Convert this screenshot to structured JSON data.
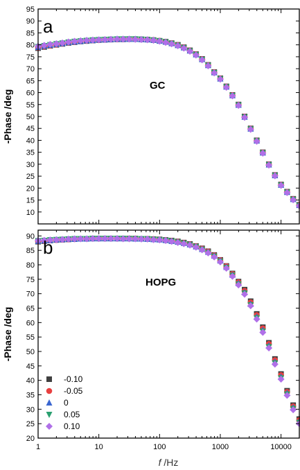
{
  "chart_data": [
    {
      "type": "scatter",
      "panel_label": "a",
      "annotation": "GC",
      "ylabel": "-Phase /deg",
      "xscale": "log",
      "xlim": [
        1,
        20000
      ],
      "ylim": [
        5,
        95
      ],
      "yticks": [
        10,
        15,
        20,
        25,
        30,
        35,
        40,
        45,
        50,
        55,
        60,
        65,
        70,
        75,
        80,
        85,
        90,
        95
      ],
      "xticks": [
        1,
        10,
        100,
        1000,
        10000
      ],
      "x": [
        1,
        1.26,
        1.58,
        2,
        2.51,
        3.16,
        3.98,
        5.01,
        6.31,
        7.94,
        10,
        12.6,
        15.8,
        20,
        25.1,
        31.6,
        39.8,
        50.1,
        63.1,
        79.4,
        100,
        126,
        158,
        200,
        251,
        316,
        398,
        501,
        631,
        794,
        1000,
        1259,
        1585,
        1995,
        2512,
        3162,
        3981,
        5012,
        6310,
        7943,
        10000,
        12589,
        15849,
        19953
      ],
      "series": [
        {
          "name": "-0.10",
          "color": "#404040",
          "marker": "square",
          "values": [
            78.6,
            79.1,
            79.6,
            80.0,
            80.4,
            80.8,
            81.1,
            81.4,
            81.6,
            81.8,
            82.0,
            82.1,
            82.2,
            82.3,
            82.3,
            82.4,
            82.4,
            82.3,
            82.2,
            82.0,
            81.7,
            81.3,
            80.7,
            80.0,
            79.0,
            77.7,
            76.1,
            74.1,
            71.6,
            68.6,
            66.0,
            62.6,
            59.0,
            55.0,
            50.0,
            45.0,
            40.0,
            35.0,
            30.0,
            25.5,
            21.5,
            18.5,
            15.5,
            13.0
          ]
        },
        {
          "name": "-0.05",
          "color": "#e84040",
          "marker": "circle",
          "values": [
            78.8,
            79.3,
            79.7,
            80.1,
            80.5,
            80.9,
            81.2,
            81.5,
            81.7,
            81.9,
            82.0,
            82.2,
            82.3,
            82.3,
            82.4,
            82.4,
            82.4,
            82.3,
            82.2,
            82.0,
            81.7,
            81.2,
            80.6,
            79.9,
            78.9,
            77.6,
            76.0,
            74.0,
            71.5,
            68.5,
            65.9,
            62.5,
            58.9,
            54.9,
            49.9,
            44.9,
            39.9,
            34.9,
            29.9,
            25.4,
            21.4,
            18.4,
            15.4,
            12.9
          ]
        },
        {
          "name": "0",
          "color": "#3a66d0",
          "marker": "triangle-up",
          "values": [
            79.0,
            79.5,
            79.9,
            80.3,
            80.6,
            81.0,
            81.3,
            81.5,
            81.8,
            81.9,
            82.1,
            82.2,
            82.3,
            82.4,
            82.4,
            82.4,
            82.4,
            82.3,
            82.2,
            82.0,
            81.6,
            81.2,
            80.6,
            79.8,
            78.8,
            77.5,
            75.9,
            73.9,
            71.4,
            68.4,
            65.8,
            62.4,
            58.8,
            54.8,
            49.8,
            44.8,
            39.8,
            34.8,
            29.8,
            25.3,
            21.3,
            18.3,
            15.3,
            12.8
          ]
        },
        {
          "name": "0.05",
          "color": "#2aa070",
          "marker": "triangle-down",
          "values": [
            79.2,
            79.6,
            80.0,
            80.4,
            80.7,
            81.1,
            81.4,
            81.6,
            81.8,
            82.0,
            82.1,
            82.2,
            82.3,
            82.4,
            82.4,
            82.4,
            82.4,
            82.3,
            82.1,
            81.9,
            81.6,
            81.1,
            80.5,
            79.7,
            78.7,
            77.4,
            75.8,
            73.8,
            71.3,
            68.3,
            65.7,
            62.3,
            58.7,
            54.7,
            49.7,
            44.7,
            39.7,
            34.7,
            29.7,
            25.2,
            21.2,
            18.2,
            15.2,
            12.7
          ]
        },
        {
          "name": "0.10",
          "color": "#b070e8",
          "marker": "diamond",
          "values": [
            79.4,
            79.8,
            80.2,
            80.5,
            80.8,
            81.2,
            81.5,
            81.7,
            81.9,
            82.0,
            82.1,
            82.2,
            82.3,
            82.4,
            82.4,
            82.4,
            82.3,
            82.2,
            82.1,
            81.9,
            81.5,
            81.0,
            80.4,
            79.6,
            78.6,
            77.3,
            75.7,
            73.7,
            71.2,
            68.2,
            65.6,
            62.2,
            58.6,
            54.6,
            49.6,
            44.6,
            39.6,
            34.6,
            29.6,
            25.1,
            21.1,
            18.1,
            15.1,
            12.6
          ]
        }
      ]
    },
    {
      "type": "scatter",
      "panel_label": "b",
      "annotation": "HOPG",
      "ylabel": "-Phase /deg",
      "xlabel_italic": "f",
      "xlabel": " /Hz",
      "xscale": "log",
      "xlim": [
        1,
        20000
      ],
      "ylim": [
        20,
        92
      ],
      "yticks": [
        20,
        25,
        30,
        35,
        40,
        45,
        50,
        55,
        60,
        65,
        70,
        75,
        80,
        85,
        90
      ],
      "xticks": [
        1,
        10,
        100,
        1000,
        10000
      ],
      "xtick_labels": [
        "1",
        "10",
        "100",
        "1000",
        "10000"
      ],
      "legend": "bottom-left",
      "x": [
        1,
        1.26,
        1.58,
        2,
        2.51,
        3.16,
        3.98,
        5.01,
        6.31,
        7.94,
        10,
        12.6,
        15.8,
        20,
        25.1,
        31.6,
        39.8,
        50.1,
        63.1,
        79.4,
        100,
        126,
        158,
        200,
        251,
        316,
        398,
        501,
        631,
        794,
        1000,
        1259,
        1585,
        1995,
        2512,
        3162,
        3981,
        5012,
        6310,
        7943,
        10000,
        12589,
        15849,
        19953
      ],
      "series": [
        {
          "name": "-0.10",
          "color": "#404040",
          "marker": "square",
          "values": [
            88.0,
            88.2,
            88.4,
            88.6,
            88.7,
            88.8,
            88.9,
            89.0,
            89.0,
            89.1,
            89.1,
            89.1,
            89.1,
            89.1,
            89.1,
            89.1,
            89.1,
            89.0,
            89.0,
            88.9,
            88.8,
            88.6,
            88.4,
            88.1,
            87.7,
            87.2,
            86.5,
            85.7,
            84.7,
            83.4,
            81.7,
            79.6,
            77.0,
            74.2,
            71.4,
            67.4,
            63.0,
            58.4,
            53.0,
            47.4,
            42.2,
            36.4,
            31.4,
            26.6
          ]
        },
        {
          "name": "-0.05",
          "color": "#e84040",
          "marker": "circle",
          "values": [
            88.1,
            88.3,
            88.5,
            88.6,
            88.7,
            88.8,
            88.9,
            89.0,
            89.0,
            89.1,
            89.1,
            89.1,
            89.1,
            89.1,
            89.1,
            89.1,
            89.1,
            89.0,
            89.0,
            88.9,
            88.7,
            88.5,
            88.3,
            88.0,
            87.6,
            87.1,
            86.4,
            85.6,
            84.6,
            83.3,
            81.6,
            79.5,
            76.8,
            74.0,
            71.0,
            67.0,
            62.6,
            58.0,
            52.6,
            47.0,
            41.8,
            36.0,
            31.0,
            26.2
          ]
        },
        {
          "name": "0",
          "color": "#3a66d0",
          "marker": "triangle-up",
          "values": [
            88.2,
            88.4,
            88.5,
            88.7,
            88.8,
            88.9,
            88.9,
            89.0,
            89.0,
            89.1,
            89.1,
            89.1,
            89.1,
            89.1,
            89.1,
            89.1,
            89.0,
            89.0,
            88.9,
            88.8,
            88.7,
            88.5,
            88.2,
            87.9,
            87.5,
            87.0,
            86.3,
            85.4,
            84.4,
            83.1,
            81.4,
            79.2,
            76.5,
            73.6,
            70.5,
            66.4,
            62.0,
            57.4,
            52.0,
            46.4,
            41.2,
            35.6,
            30.6,
            25.8
          ]
        },
        {
          "name": "0.05",
          "color": "#2aa070",
          "marker": "triangle-down",
          "values": [
            88.3,
            88.4,
            88.6,
            88.7,
            88.8,
            88.9,
            89.0,
            89.0,
            89.0,
            89.1,
            89.1,
            89.1,
            89.1,
            89.1,
            89.1,
            89.0,
            89.0,
            89.0,
            88.9,
            88.8,
            88.6,
            88.4,
            88.2,
            87.8,
            87.4,
            86.9,
            86.2,
            85.3,
            84.2,
            82.9,
            81.2,
            79.0,
            76.3,
            73.3,
            70.2,
            66.1,
            61.6,
            57.0,
            51.6,
            46.0,
            40.8,
            35.2,
            30.2,
            25.4
          ]
        },
        {
          "name": "0.10",
          "color": "#b070e8",
          "marker": "diamond",
          "values": [
            88.4,
            88.5,
            88.6,
            88.7,
            88.8,
            88.9,
            89.0,
            89.0,
            89.0,
            89.1,
            89.1,
            89.1,
            89.1,
            89.1,
            89.0,
            89.0,
            89.0,
            88.9,
            88.9,
            88.7,
            88.6,
            88.4,
            88.1,
            87.7,
            87.3,
            86.8,
            86.1,
            85.2,
            84.1,
            82.7,
            81.0,
            78.8,
            76.0,
            73.0,
            69.8,
            65.8,
            61.2,
            56.6,
            51.2,
            45.6,
            40.4,
            34.8,
            29.8,
            25.0
          ]
        }
      ]
    }
  ]
}
